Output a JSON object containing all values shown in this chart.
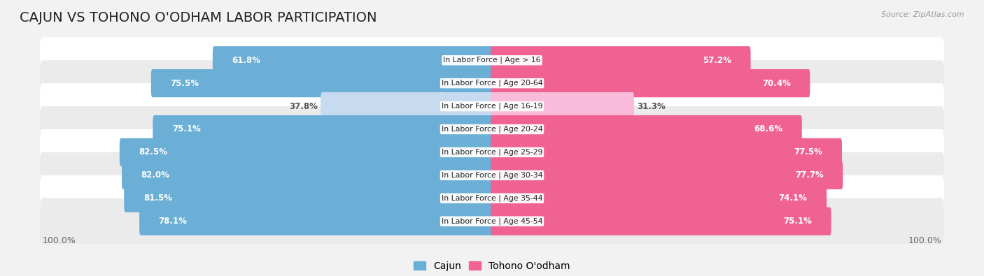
{
  "title": "CAJUN VS TOHONO O'ODHAM LABOR PARTICIPATION",
  "source": "Source: ZipAtlas.com",
  "categories": [
    "In Labor Force | Age > 16",
    "In Labor Force | Age 20-64",
    "In Labor Force | Age 16-19",
    "In Labor Force | Age 20-24",
    "In Labor Force | Age 25-29",
    "In Labor Force | Age 30-34",
    "In Labor Force | Age 35-44",
    "In Labor Force | Age 45-54"
  ],
  "cajun_values": [
    61.8,
    75.5,
    37.8,
    75.1,
    82.5,
    82.0,
    81.5,
    78.1
  ],
  "tohono_values": [
    57.2,
    70.4,
    31.3,
    68.6,
    77.5,
    77.7,
    74.1,
    75.1
  ],
  "cajun_color": "#6BAED6",
  "cajun_color_light": "#C6DBEF",
  "tohono_color": "#F06292",
  "tohono_color_light": "#F8BBD9",
  "max_value": 100.0,
  "bar_height": 0.62,
  "background_color": "#f2f2f2",
  "row_bg_even": "#ffffff",
  "row_bg_odd": "#ebebeb",
  "label_fontsize": 8.5,
  "title_fontsize": 14,
  "source_fontsize": 8,
  "legend_fontsize": 10,
  "small_threshold": 50
}
